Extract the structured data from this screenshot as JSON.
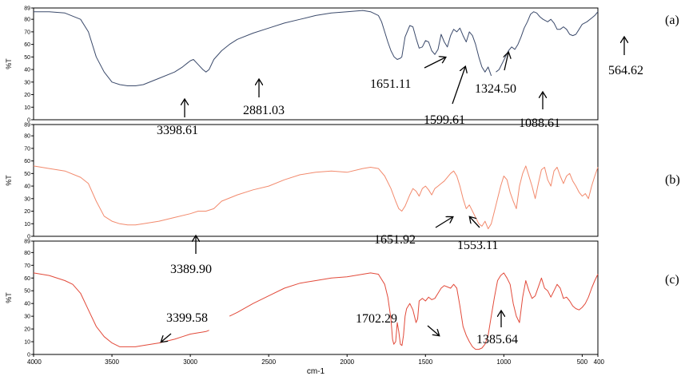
{
  "chart_data": {
    "type": "line",
    "xlabel": "cm-1",
    "ylabel": "%T",
    "xlim": [
      4000,
      400
    ],
    "x_ticks": [
      "4000",
      "3500",
      "3000",
      "2500",
      "2000",
      "1500",
      "1000",
      "500",
      "400"
    ],
    "panels": [
      {
        "label": "(a)",
        "color": "#3b4a6b",
        "ylim": [
          0,
          89
        ],
        "y_ticks": [
          "89",
          "80",
          "70",
          "60",
          "50",
          "40",
          "30",
          "20",
          "10",
          "0"
        ],
        "series": [
          {
            "x": [
              4000,
              3900,
              3800,
              3700,
              3650,
              3600,
              3550,
              3500,
              3450,
              3400,
              3350,
              3300,
              3200,
              3100,
              3050,
              3020,
              3000,
              2980,
              2950,
              2920,
              2900,
              2880,
              2850,
              2800,
              2750,
              2700,
              2600,
              2500,
              2400,
              2300,
              2200,
              2100,
              2000,
              1900,
              1850,
              1800,
              1780,
              1760,
              1740,
              1720,
              1700,
              1680,
              1660,
              1651,
              1630,
              1600,
              1580,
              1560,
              1540,
              1520,
              1500,
              1480,
              1460,
              1440,
              1420,
              1400,
              1380,
              1360,
              1340,
              1320,
              1300,
              1280,
              1260,
              1240,
              1220,
              1200,
              1180,
              1160,
              1140,
              1120,
              1100,
              1080
            ],
            "y": [
              86,
              86,
              85,
              80,
              70,
              50,
              38,
              30,
              28,
              27,
              27,
              28,
              33,
              38,
              42,
              45,
              47,
              48,
              44,
              40,
              38,
              40,
              48,
              55,
              60,
              64,
              69,
              73,
              77,
              80,
              83,
              85,
              86,
              87,
              86,
              83,
              78,
              70,
              62,
              55,
              50,
              48,
              49,
              50,
              66,
              75,
              74,
              65,
              57,
              58,
              63,
              62,
              55,
              52,
              56,
              68,
              62,
              58,
              67,
              72,
              70,
              73,
              67,
              62,
              70,
              67,
              60,
              50,
              42,
              38,
              42,
              35
            ]
          },
          {
            "x": [
              1050,
              1030,
              1010,
              990,
              970,
              950,
              930,
              910,
              890,
              870,
              850,
              830,
              810,
              790,
              770,
              750,
              720,
              700,
              680,
              660,
              640,
              620,
              600,
              580,
              560,
              540,
              520,
              500,
              470,
              440,
              420,
              400
            ],
            "y": [
              38,
              40,
              45,
              50,
              55,
              58,
              56,
              60,
              66,
              73,
              78,
              84,
              86,
              85,
              82,
              80,
              78,
              80,
              77,
              72,
              72,
              74,
              72,
              68,
              67,
              68,
              72,
              76,
              78,
              81,
              83,
              86
            ]
          }
        ]
      },
      {
        "label": "(b)",
        "color": "#f28a6d",
        "ylim": [
          0,
          89
        ],
        "y_ticks": [
          "89",
          "80",
          "70",
          "60",
          "50",
          "40",
          "30",
          "20",
          "10",
          "0"
        ],
        "series": [
          {
            "x": [
              4000,
              3900,
              3800,
              3700,
              3650,
              3600,
              3550,
              3500,
              3450,
              3400,
              3350,
              3300,
              3200,
              3100,
              3000,
              2950,
              2900,
              2850,
              2800,
              2700,
              2600,
              2500,
              2400,
              2300,
              2200,
              2100,
              2000,
              1900,
              1850,
              1800,
              1760,
              1720,
              1690,
              1670,
              1651,
              1630,
              1600,
              1580,
              1560,
              1540,
              1520,
              1500,
              1480,
              1460,
              1440,
              1420,
              1400,
              1380,
              1360,
              1340,
              1320,
              1300,
              1280,
              1260,
              1240,
              1220,
              1200,
              1180,
              1160,
              1140,
              1120,
              1100,
              1080,
              1060,
              1040,
              1020,
              1000,
              980,
              960,
              940,
              920,
              900,
              880,
              860,
              840,
              820,
              800,
              780,
              760,
              740,
              720,
              700,
              680,
              660,
              640,
              620,
              600,
              580,
              560,
              540,
              520,
              500,
              480,
              460,
              440,
              420,
              400
            ],
            "y": [
              56,
              54,
              52,
              47,
              42,
              28,
              16,
              12,
              10,
              9,
              9,
              10,
              12,
              15,
              18,
              20,
              20,
              22,
              28,
              33,
              37,
              40,
              45,
              49,
              51,
              52,
              51,
              54,
              55,
              54,
              48,
              38,
              28,
              22,
              20,
              24,
              33,
              38,
              36,
              32,
              38,
              40,
              37,
              33,
              38,
              40,
              42,
              44,
              47,
              50,
              52,
              48,
              40,
              30,
              22,
              25,
              20,
              15,
              10,
              8,
              12,
              6,
              10,
              20,
              30,
              40,
              48,
              45,
              35,
              28,
              22,
              40,
              50,
              56,
              48,
              40,
              30,
              42,
              53,
              55,
              45,
              40,
              52,
              55,
              48,
              42,
              48,
              50,
              44,
              40,
              35,
              32,
              34,
              30,
              40,
              48,
              55
            ]
          }
        ]
      },
      {
        "label": "(c)",
        "color": "#e24a3a",
        "ylim": [
          0,
          89
        ],
        "y_ticks": [
          "89",
          "80",
          "70",
          "60",
          "50",
          "40",
          "30",
          "20",
          "10",
          "0"
        ],
        "series": [
          {
            "x": [
              4000,
              3900,
              3800,
              3750,
              3700,
              3650,
              3600,
              3550,
              3500,
              3450,
              3400,
              3350,
              3300,
              3200,
              3100,
              3050,
              3000,
              2950,
              2900,
              2880
            ],
            "y": [
              64,
              62,
              58,
              55,
              48,
              35,
              22,
              14,
              9,
              6,
              6,
              6,
              7,
              9,
              12,
              14,
              16,
              17,
              18,
              19
            ]
          },
          {
            "x": [
              2750,
              2700,
              2600,
              2500,
              2400,
              2300,
              2200,
              2100,
              2000,
              1900,
              1850,
              1800,
              1760,
              1740,
              1720,
              1710,
              1702,
              1690,
              1680,
              1670,
              1660,
              1650,
              1640,
              1630,
              1620,
              1600,
              1580,
              1560,
              1550,
              1540,
              1520,
              1500,
              1480,
              1460,
              1440,
              1420,
              1400,
              1380,
              1360,
              1340,
              1320,
              1300,
              1280,
              1260,
              1240,
              1220,
              1200,
              1180,
              1160,
              1140,
              1120,
              1100,
              1080,
              1060,
              1040,
              1020,
              1000,
              980,
              960,
              940,
              920,
              900,
              880,
              860,
              840,
              820,
              800,
              780,
              760,
              740,
              720,
              700,
              680,
              660,
              640,
              620,
              600,
              580,
              560,
              540,
              520,
              500,
              480,
              460,
              440,
              420,
              400
            ],
            "y": [
              30,
              33,
              40,
              46,
              52,
              56,
              58,
              60,
              61,
              63,
              64,
              63,
              55,
              45,
              28,
              12,
              8,
              10,
              25,
              18,
              8,
              7,
              15,
              30,
              36,
              40,
              35,
              25,
              28,
              42,
              44,
              42,
              45,
              43,
              44,
              48,
              52,
              54,
              53,
              52,
              55,
              52,
              38,
              22,
              15,
              10,
              6,
              4,
              4,
              5,
              8,
              15,
              30,
              45,
              58,
              62,
              64,
              60,
              55,
              40,
              30,
              25,
              45,
              58,
              50,
              44,
              46,
              53,
              60,
              52,
              50,
              45,
              50,
              55,
              52,
              44,
              45,
              42,
              38,
              36,
              35,
              37,
              40,
              45,
              52,
              58,
              63
            ]
          }
        ]
      }
    ],
    "annotations": [
      {
        "panel": 0,
        "text": "3398.61",
        "arrow": "up",
        "x": 3000
      },
      {
        "panel": 0,
        "text": "2881.03",
        "arrow": "up",
        "x": 2560
      },
      {
        "panel": 0,
        "text": "1651.11",
        "arrow": "up-right",
        "x": 1340
      },
      {
        "panel": 0,
        "text": "1599.61",
        "arrow": "up-right",
        "x": 1240
      },
      {
        "panel": 0,
        "text": "1324.50",
        "arrow": "up",
        "x": 1010
      },
      {
        "panel": 0,
        "text": "1088.61",
        "arrow": "up",
        "x": 830
      },
      {
        "panel": 0,
        "text": "564.62",
        "arrow": "up",
        "x": 400
      },
      {
        "panel": 1,
        "text": "3389.90",
        "arrow": "up",
        "x": 2960
      },
      {
        "panel": 1,
        "text": "1651.92",
        "arrow": "up-right",
        "x": 1300
      },
      {
        "panel": 1,
        "text": "1553.11",
        "arrow": "up-left",
        "x": 1180
      },
      {
        "panel": 2,
        "text": "3399.58",
        "arrow": "down-left",
        "x": 3150
      },
      {
        "panel": 2,
        "text": "1702.29",
        "arrow": "down-right",
        "x": 1500
      },
      {
        "panel": 2,
        "text": "1385.64",
        "arrow": "up",
        "x": 1030
      }
    ]
  }
}
